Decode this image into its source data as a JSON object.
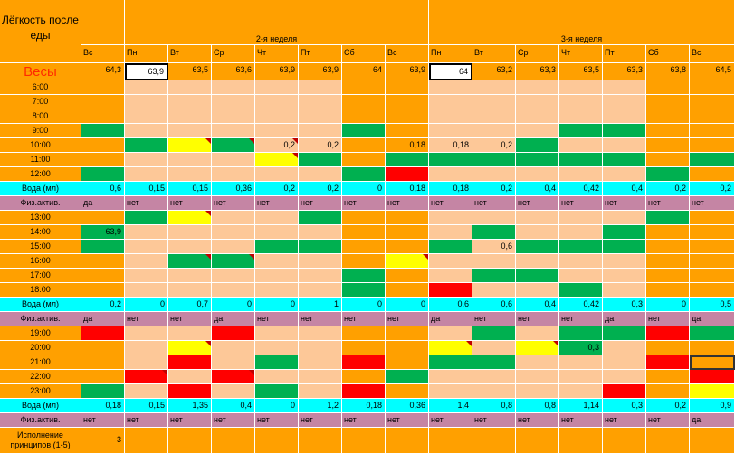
{
  "header": {
    "title": "Лёгкость после еды",
    "week2": "2-я неделя",
    "week3": "3-я неделя",
    "days": [
      "Вс",
      "Пн",
      "Вт",
      "Ср",
      "Чт",
      "Пт",
      "Сб",
      "Вс",
      "Пн",
      "Вт",
      "Ср",
      "Чт",
      "Пт",
      "Сб",
      "Вс"
    ]
  },
  "weights": {
    "label": "Весы",
    "values": [
      "64,3",
      "63,9",
      "63,5",
      "63,6",
      "63,9",
      "63,9",
      "64",
      "63,9",
      "64",
      "63,2",
      "63,3",
      "63,5",
      "63,3",
      "63,8",
      "64,5"
    ]
  },
  "rows": [
    {
      "type": "time",
      "label": "6:00",
      "cells": [
        "o",
        "p",
        "p",
        "p",
        "p",
        "p",
        "o",
        "o",
        "p",
        "p",
        "p",
        "p",
        "p",
        "o",
        "o"
      ]
    },
    {
      "type": "time",
      "label": "7:00",
      "cells": [
        "o",
        "p",
        "p",
        "p",
        "p",
        "p",
        "o",
        "o",
        "p",
        "p",
        "p",
        "p",
        "p",
        "o",
        "o"
      ]
    },
    {
      "type": "time",
      "label": "8:00",
      "cells": [
        "o",
        "p",
        "p",
        "p",
        "p",
        "p",
        "o",
        "o",
        "p",
        "p",
        "p",
        "p",
        "p",
        "o",
        "o"
      ]
    },
    {
      "type": "time",
      "label": "9:00",
      "cells": [
        "g",
        "p",
        "p",
        "p",
        "p",
        "p",
        "g",
        "o",
        "p",
        "p",
        "p",
        "g",
        "g",
        "o",
        "o"
      ]
    },
    {
      "type": "time",
      "label": "10:00",
      "cells": [
        "o",
        "g",
        "y",
        "g",
        "p",
        "p",
        "o",
        "o",
        "p",
        "p",
        "g",
        "p",
        "p",
        "o",
        "o"
      ],
      "tri": [
        2,
        3,
        4
      ],
      "text": {
        "4": "0,2",
        "5": "0,2",
        "7": "0,18",
        "8": "0,18",
        "9": "0,2"
      }
    },
    {
      "type": "time",
      "label": "11:00",
      "cells": [
        "o",
        "p",
        "p",
        "p",
        "y",
        "g",
        "o",
        "g",
        "g",
        "g",
        "g",
        "g",
        "g",
        "o",
        "g"
      ],
      "tri": [
        4
      ]
    },
    {
      "type": "time",
      "label": "12:00",
      "cells": [
        "g",
        "p",
        "p",
        "p",
        "p",
        "p",
        "g",
        "r",
        "p",
        "p",
        "p",
        "p",
        "p",
        "g",
        "o"
      ]
    },
    {
      "type": "water",
      "label": "Вода (мл)",
      "values": [
        "0,6",
        "0,15",
        "0,15",
        "0,36",
        "0,2",
        "0,2",
        "0",
        "0,18",
        "0,18",
        "0,2",
        "0,4",
        "0,42",
        "0,4",
        "0,2",
        "0,2"
      ]
    },
    {
      "type": "act",
      "label": "Физ.актив.",
      "values": [
        "да",
        "нет",
        "нет",
        "нет",
        "нет",
        "нет",
        "нет",
        "нет",
        "нет",
        "нет",
        "нет",
        "нет",
        "нет",
        "нет",
        "нет"
      ]
    },
    {
      "type": "time",
      "label": "13:00",
      "cells": [
        "o",
        "g",
        "y",
        "p",
        "p",
        "g",
        "o",
        "o",
        "p",
        "p",
        "p",
        "p",
        "p",
        "g",
        "o"
      ],
      "tri": [
        2
      ]
    },
    {
      "type": "time",
      "label": "14:00",
      "cells": [
        "g",
        "p",
        "p",
        "p",
        "p",
        "p",
        "o",
        "o",
        "p",
        "g",
        "p",
        "p",
        "g",
        "o",
        "o"
      ],
      "text": {
        "0": "63,9"
      }
    },
    {
      "type": "time",
      "label": "15:00",
      "cells": [
        "g",
        "p",
        "p",
        "p",
        "g",
        "g",
        "o",
        "o",
        "g",
        "p",
        "g",
        "g",
        "g",
        "o",
        "o"
      ],
      "text": {
        "9": "0,6"
      }
    },
    {
      "type": "time",
      "label": "16:00",
      "cells": [
        "o",
        "p",
        "g",
        "g",
        "p",
        "p",
        "o",
        "y",
        "p",
        "p",
        "p",
        "p",
        "p",
        "o",
        "o"
      ],
      "tri": [
        2,
        3,
        7
      ]
    },
    {
      "type": "time",
      "label": "17:00",
      "cells": [
        "o",
        "p",
        "p",
        "p",
        "p",
        "p",
        "g",
        "o",
        "p",
        "g",
        "g",
        "p",
        "p",
        "o",
        "o"
      ]
    },
    {
      "type": "time",
      "label": "18:00",
      "cells": [
        "o",
        "p",
        "p",
        "p",
        "p",
        "p",
        "g",
        "o",
        "r",
        "p",
        "p",
        "g",
        "p",
        "o",
        "o"
      ]
    },
    {
      "type": "water",
      "label": "Вода (мл)",
      "values": [
        "0,2",
        "0",
        "0,7",
        "0",
        "0",
        "1",
        "0",
        "0",
        "0,6",
        "0,6",
        "0,4",
        "0,42",
        "0,3",
        "0",
        "0,5"
      ]
    },
    {
      "type": "act",
      "label": "Физ.актив.",
      "values": [
        "да",
        "нет",
        "нет",
        "да",
        "нет",
        "нет",
        "нет",
        "нет",
        "да",
        "нет",
        "нет",
        "нет",
        "да",
        "нет",
        "да"
      ]
    },
    {
      "type": "time",
      "label": "19:00",
      "cells": [
        "r",
        "p",
        "p",
        "r",
        "p",
        "p",
        "o",
        "o",
        "p",
        "g",
        "p",
        "g",
        "g",
        "r",
        "g"
      ]
    },
    {
      "type": "time",
      "label": "20:00",
      "cells": [
        "o",
        "p",
        "y",
        "p",
        "p",
        "p",
        "o",
        "o",
        "y",
        "p",
        "y",
        "g",
        "p",
        "o",
        "o"
      ],
      "tri": [
        2,
        8,
        10
      ],
      "text": {
        "11": "0,3"
      }
    },
    {
      "type": "time",
      "label": "21:00",
      "cells": [
        "o",
        "p",
        "r",
        "p",
        "g",
        "p",
        "r",
        "o",
        "g",
        "g",
        "p",
        "p",
        "p",
        "r",
        "o"
      ]
    },
    {
      "type": "time",
      "label": "22:00",
      "cells": [
        "o",
        "r",
        "p",
        "r",
        "p",
        "p",
        "o",
        "g",
        "p",
        "p",
        "p",
        "p",
        "p",
        "o",
        "r"
      ],
      "tri": [
        1,
        3
      ]
    },
    {
      "type": "time",
      "label": "23:00",
      "cells": [
        "g",
        "p",
        "r",
        "p",
        "g",
        "p",
        "r",
        "o",
        "p",
        "p",
        "p",
        "p",
        "r",
        "o",
        "y"
      ]
    },
    {
      "type": "water",
      "label": "Вода (мл)",
      "values": [
        "0,18",
        "0,15",
        "1,35",
        "0,4",
        "0",
        "1,2",
        "0,18",
        "0,36",
        "1,4",
        "0,8",
        "0,8",
        "1,14",
        "0,3",
        "0,2",
        "0,9"
      ]
    },
    {
      "type": "act",
      "label": "Физ.актив.",
      "values": [
        "нет",
        "нет",
        "нет",
        "нет",
        "нет",
        "нет",
        "нет",
        "нет",
        "нет",
        "нет",
        "нет",
        "нет",
        "нет",
        "нет",
        "да"
      ]
    }
  ],
  "footer": {
    "label": "Исполнение принципов (1-5)",
    "value": "3"
  },
  "colors": {
    "orange": "#ffa000",
    "peach": "#fdc898",
    "green": "#00b050",
    "yellow": "#ffff00",
    "red": "#ff0000",
    "cyan": "#00ffff",
    "mauve": "#c585a4",
    "weight_red": "#ff2a00"
  }
}
